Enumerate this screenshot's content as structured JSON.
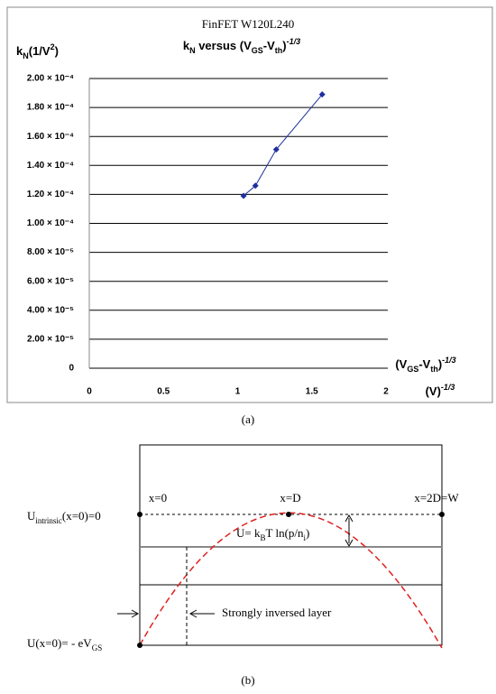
{
  "chart_data": {
    "type": "line",
    "title": "FinFET W120L240",
    "subtitle": [
      "k",
      "N",
      " versus (V",
      "GS",
      "-V",
      "th",
      ")",
      "-1/3"
    ],
    "y_label": [
      "k",
      "N",
      "(1/V",
      "2",
      ")"
    ],
    "x_label": [
      "(V",
      "GS",
      "-V",
      "th",
      ")",
      "-1/3"
    ],
    "x_unit": [
      "(V)",
      "-1/3"
    ],
    "x": [
      1.04,
      1.12,
      1.26,
      1.57
    ],
    "series": [
      {
        "color": "#1f2f9f",
        "values": [
          0.000119,
          0.000126,
          0.000151,
          0.000189
        ]
      }
    ],
    "xlim": [
      0,
      2
    ],
    "xticks": [
      0,
      0.5,
      1,
      1.5,
      2
    ],
    "ylim": [
      0,
      0.0002
    ],
    "yticks": [
      0,
      {
        "value": 2e-05,
        "label": "2.00 × 10⁻⁵"
      },
      {
        "value": 4e-05,
        "label": "4.00 × 10⁻⁵"
      },
      {
        "value": 6e-05,
        "label": "6.00 × 10⁻⁵"
      },
      {
        "value": 8e-05,
        "label": "8.00 × 10⁻⁵"
      },
      {
        "value": 0.0001,
        "label": "1.00 × 10⁻⁴"
      },
      {
        "value": 0.00012,
        "label": "1.20 × 10⁻⁴"
      },
      {
        "value": 0.00014,
        "label": "1.40 × 10⁻⁴"
      },
      {
        "value": 0.00016,
        "label": "1.60 × 10⁻⁴"
      },
      {
        "value": 0.00018,
        "label": "1.80 × 10⁻⁴"
      },
      {
        "value": 0.0002,
        "label": "2.00 × 10⁻⁴"
      }
    ],
    "grid": true
  },
  "caption_a": "(a)",
  "diagram": {
    "x0": "x=0",
    "xD": "x=D",
    "x2D": "x=2D=W",
    "u_intrinsic": [
      "U",
      "intrinsic",
      "(x=0)=0"
    ],
    "u_eq": [
      "U= k",
      "B",
      "T ln(p/n",
      "i",
      ")"
    ],
    "layer": "Strongly inversed layer",
    "u_surface": [
      "U(x=0)= - eV",
      "GS"
    ]
  },
  "caption_b": "(b)"
}
